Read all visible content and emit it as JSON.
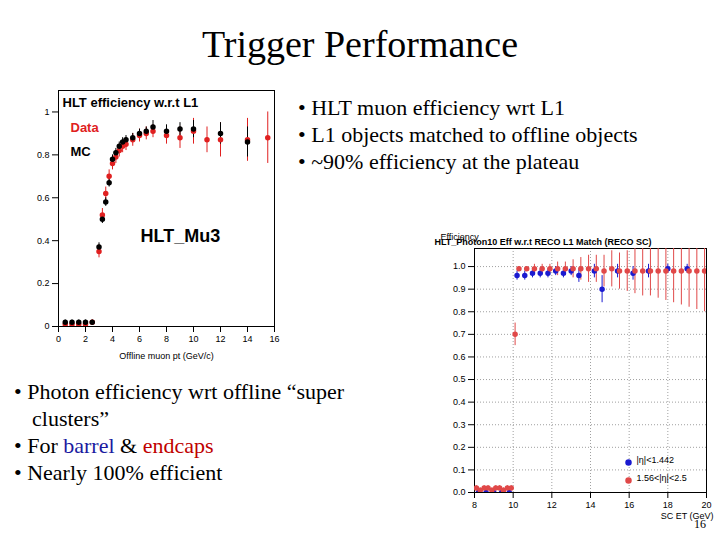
{
  "slide": {
    "title": "Trigger Performance",
    "bullets_top": [
      [
        {
          "text": "• HLT muon efficiency wrt L1"
        }
      ],
      [
        {
          "text": "• L1 objects matched to offline objects"
        }
      ],
      [
        {
          "text": "• ~90% efficiency at the plateau"
        }
      ]
    ],
    "bullets_bottom": [
      [
        {
          "text": "• Photon efficiency wrt offline “super clusters”"
        }
      ],
      [
        {
          "text": "• For "
        },
        {
          "text": "barrel",
          "color": "#1a1aa0"
        },
        {
          "text": " & "
        },
        {
          "text": "endcaps",
          "color": "#c00000"
        }
      ],
      [
        {
          "text": "• Nearly 100% efficient"
        }
      ]
    ],
    "page": "16"
  },
  "chart_data": [
    {
      "type": "scatter",
      "title": "HLT efficiency w.r.t L1",
      "annotation": "HLT_Mu3",
      "x_label": "Offline muon pt (GeV/c)",
      "xlim": [
        0,
        16
      ],
      "xticks": [
        0,
        2,
        4,
        6,
        8,
        10,
        12,
        14,
        16
      ],
      "ylim": [
        0,
        1.1
      ],
      "yticks": [
        0,
        0.2,
        0.4,
        0.6,
        0.8,
        1
      ],
      "grid": false,
      "legend": "top-left",
      "series": [
        {
          "name": "Data",
          "color": "#e02020",
          "marker": "circle",
          "x": [
            0.5,
            1,
            1.5,
            2,
            2.5,
            3,
            3.25,
            3.5,
            3.75,
            4,
            4.25,
            4.5,
            4.75,
            5,
            5.5,
            6,
            6.5,
            7,
            8,
            9,
            10,
            11,
            12,
            14,
            15.5
          ],
          "values": [
            0.01,
            0.01,
            0.01,
            0.01,
            0.02,
            0.35,
            0.52,
            0.62,
            0.7,
            0.76,
            0.79,
            0.82,
            0.84,
            0.85,
            0.87,
            0.89,
            0.9,
            0.91,
            0.89,
            0.88,
            0.91,
            0.87,
            0.87,
            0.87,
            0.88
          ],
          "errors": [
            0.01,
            0.01,
            0.01,
            0.01,
            0.01,
            0.03,
            0.03,
            0.03,
            0.03,
            0.03,
            0.03,
            0.03,
            0.03,
            0.03,
            0.03,
            0.03,
            0.03,
            0.03,
            0.04,
            0.05,
            0.06,
            0.06,
            0.08,
            0.1,
            0.12
          ]
        },
        {
          "name": "MC",
          "color": "#000000",
          "marker": "circle",
          "x": [
            0.5,
            1,
            1.5,
            2,
            2.5,
            3,
            3.25,
            3.5,
            3.75,
            4,
            4.25,
            4.5,
            4.75,
            5,
            5.5,
            6,
            6.5,
            7,
            8,
            9,
            10,
            12,
            14
          ],
          "values": [
            0.02,
            0.02,
            0.02,
            0.02,
            0.02,
            0.37,
            0.5,
            0.58,
            0.67,
            0.78,
            0.81,
            0.84,
            0.86,
            0.87,
            0.88,
            0.9,
            0.91,
            0.93,
            0.91,
            0.92,
            0.92,
            0.9,
            0.86
          ],
          "errors": [
            0.01,
            0.01,
            0.01,
            0.01,
            0.01,
            0.02,
            0.02,
            0.02,
            0.02,
            0.02,
            0.02,
            0.02,
            0.02,
            0.02,
            0.02,
            0.02,
            0.02,
            0.03,
            0.03,
            0.03,
            0.04,
            0.05,
            0.07
          ]
        }
      ]
    },
    {
      "type": "scatter",
      "title": "HLT_Photon10 Eff w.r.t RECO L1 Match (RECO SC)",
      "x_label": "SC ET (GeV)",
      "y_label": "Efficiency",
      "xlim": [
        8,
        20
      ],
      "xticks": [
        8,
        10,
        12,
        14,
        16,
        18,
        20
      ],
      "ylim": [
        0,
        1.08
      ],
      "yticks": [
        {
          "value": 0,
          "label": "0.0"
        },
        0.1,
        0.2,
        0.3,
        0.4,
        0.5,
        0.6,
        0.7,
        0.8,
        0.9,
        {
          "value": 1,
          "label": "1.0"
        }
      ],
      "grid": true,
      "legend": "bottom-right",
      "series": [
        {
          "name": "|η|<1.442",
          "color": "#1a1ad0",
          "marker": "circle",
          "x": [
            8.2,
            8.6,
            9.0,
            9.4,
            9.8,
            10.2,
            10.6,
            11.0,
            11.4,
            11.8,
            12.2,
            12.6,
            13.0,
            13.4,
            14.2,
            14.6,
            15.4,
            16.2,
            17.0,
            18.0,
            19.0
          ],
          "values": [
            0.0,
            0.0,
            0.0,
            0.0,
            0.0,
            0.96,
            0.96,
            0.97,
            0.97,
            0.97,
            0.98,
            0.97,
            0.98,
            0.96,
            0.98,
            0.9,
            0.98,
            0.97,
            0.98,
            0.99,
            0.99
          ],
          "errors": [
            0.005,
            0.005,
            0.005,
            0.005,
            0.005,
            0.02,
            0.02,
            0.02,
            0.02,
            0.02,
            0.02,
            0.02,
            0.02,
            0.03,
            0.03,
            0.06,
            0.03,
            0.03,
            0.03,
            0.02,
            0.02
          ]
        },
        {
          "name": "1.56<|η|<2.5",
          "color": "#e04848",
          "marker": "circle",
          "x": [
            8.1,
            8.3,
            8.5,
            8.7,
            8.9,
            9.1,
            9.3,
            9.5,
            9.7,
            9.9,
            10.1,
            10.3,
            10.7,
            11.1,
            11.5,
            11.9,
            12.3,
            12.7,
            13.1,
            13.5,
            13.9,
            14.3,
            14.7,
            15.1,
            15.5,
            15.9,
            16.3,
            16.7,
            17.1,
            17.5,
            17.9,
            18.3,
            18.7,
            19.1,
            19.5,
            19.9
          ],
          "values": [
            0.02,
            0.01,
            0.02,
            0.02,
            0.01,
            0.02,
            0.02,
            0.01,
            0.02,
            0.02,
            0.7,
            0.99,
            0.99,
            0.99,
            0.99,
            0.99,
            0.99,
            0.99,
            0.99,
            0.99,
            0.99,
            0.99,
            0.98,
            0.99,
            0.98,
            0.98,
            0.98,
            0.98,
            0.98,
            0.98,
            0.98,
            0.98,
            0.98,
            0.98,
            0.98,
            0.98
          ],
          "errors": [
            0.01,
            0.01,
            0.01,
            0.01,
            0.01,
            0.01,
            0.01,
            0.01,
            0.01,
            0.01,
            0.05,
            0.01,
            0.01,
            0.02,
            0.02,
            0.02,
            0.03,
            0.03,
            0.04,
            0.05,
            0.06,
            0.06,
            0.07,
            0.08,
            0.08,
            0.09,
            0.1,
            0.11,
            0.11,
            0.12,
            0.13,
            0.14,
            0.15,
            0.16,
            0.17,
            0.18
          ]
        }
      ]
    }
  ]
}
